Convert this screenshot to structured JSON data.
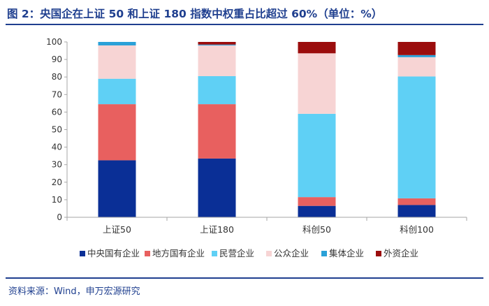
{
  "title": "图 2：央国企在上证 50 和上证 180 指数中权重占比超过 60%（单位：%）",
  "source": "资料来源：Wind，申万宏源研究",
  "chart_data": {
    "type": "bar",
    "stacked": true,
    "categories": [
      "上证50",
      "上证180",
      "科创50",
      "科创100"
    ],
    "ylim": [
      0,
      100
    ],
    "yticks": [
      0,
      10,
      20,
      30,
      40,
      50,
      60,
      70,
      80,
      90,
      100
    ],
    "legend_position": "bottom",
    "grid": false,
    "series": [
      {
        "name": "中央国有企业",
        "color": "#0a2f96",
        "values": [
          32.5,
          33.5,
          6.5,
          7.0
        ]
      },
      {
        "name": "地方国有企业",
        "color": "#e8605f",
        "values": [
          32.0,
          31.0,
          5.0,
          3.8
        ]
      },
      {
        "name": "民营企业",
        "color": "#5fd0f5",
        "values": [
          14.5,
          16.0,
          47.5,
          69.5
        ]
      },
      {
        "name": "公众企业",
        "color": "#f7d4d4",
        "values": [
          19.0,
          17.5,
          34.5,
          11.0
        ]
      },
      {
        "name": "集体企业",
        "color": "#2aa1d8",
        "values": [
          2.0,
          0.5,
          0.0,
          1.2
        ]
      },
      {
        "name": "外资企业",
        "color": "#9b0d0d",
        "values": [
          0.0,
          1.5,
          6.5,
          7.5
        ]
      }
    ]
  }
}
